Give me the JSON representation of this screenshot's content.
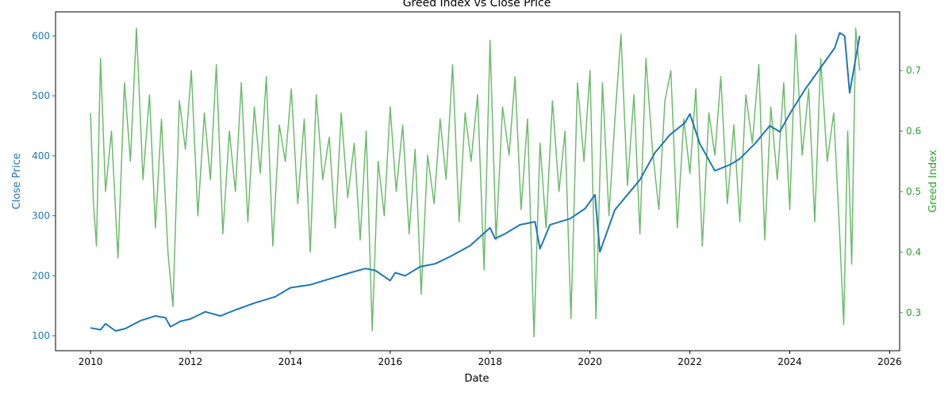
{
  "chart_data": {
    "type": "line",
    "title": "Greed Index vs Close Price",
    "xlabel": "Date",
    "ylabel_left": "Close Price",
    "ylabel_right": "Greed Index",
    "xlim": [
      2009.3,
      2026.2
    ],
    "ylim_left": [
      75,
      640
    ],
    "ylim_right": [
      0.237,
      0.797
    ],
    "x_ticks": [
      "2010",
      "2012",
      "2014",
      "2016",
      "2018",
      "2020",
      "2022",
      "2024",
      "2026"
    ],
    "x_tick_values": [
      2010,
      2012,
      2014,
      2016,
      2018,
      2020,
      2022,
      2024,
      2026
    ],
    "y_ticks_left": [
      100,
      200,
      300,
      400,
      500,
      600
    ],
    "y_ticks_right": [
      0.3,
      0.4,
      0.5,
      0.6,
      0.7
    ],
    "grid": false,
    "colors": {
      "close": "#1f77b4",
      "greed": "#2ca02c",
      "axis": "#000000"
    },
    "series": [
      {
        "name": "Close Price",
        "axis": "left",
        "x": [
          2010.0,
          2010.2,
          2010.3,
          2010.5,
          2010.7,
          2011.0,
          2011.3,
          2011.5,
          2011.6,
          2011.8,
          2012.0,
          2012.3,
          2012.6,
          2012.9,
          2013.3,
          2013.7,
          2014.0,
          2014.4,
          2014.8,
          2015.2,
          2015.5,
          2015.7,
          2016.0,
          2016.1,
          2016.3,
          2016.6,
          2016.9,
          2017.2,
          2017.6,
          2018.0,
          2018.1,
          2018.3,
          2018.6,
          2018.9,
          2019.0,
          2019.2,
          2019.6,
          2019.9,
          2020.1,
          2020.2,
          2020.5,
          2020.8,
          2021.0,
          2021.3,
          2021.6,
          2021.9,
          2022.0,
          2022.2,
          2022.5,
          2022.8,
          2023.0,
          2023.3,
          2023.6,
          2023.8,
          2024.0,
          2024.3,
          2024.6,
          2024.9,
          2025.0,
          2025.1,
          2025.2,
          2025.4
        ],
        "y": [
          113,
          110,
          120,
          108,
          112,
          125,
          133,
          130,
          115,
          124,
          128,
          140,
          133,
          143,
          155,
          165,
          180,
          185,
          195,
          205,
          212,
          209,
          192,
          205,
          200,
          215,
          220,
          232,
          250,
          280,
          262,
          270,
          285,
          290,
          245,
          285,
          295,
          312,
          335,
          240,
          310,
          340,
          360,
          405,
          435,
          455,
          470,
          420,
          375,
          385,
          395,
          420,
          450,
          440,
          470,
          510,
          545,
          580,
          605,
          600,
          505,
          600
        ]
      },
      {
        "name": "Greed Index",
        "axis": "right",
        "x": [
          2010.0,
          2010.06,
          2010.12,
          2010.2,
          2010.3,
          2010.42,
          2010.55,
          2010.68,
          2010.8,
          2010.92,
          2011.05,
          2011.18,
          2011.3,
          2011.42,
          2011.55,
          2011.65,
          2011.78,
          2011.9,
          2012.02,
          2012.15,
          2012.28,
          2012.4,
          2012.52,
          2012.65,
          2012.78,
          2012.9,
          2013.02,
          2013.15,
          2013.28,
          2013.4,
          2013.52,
          2013.65,
          2013.78,
          2013.9,
          2014.02,
          2014.15,
          2014.28,
          2014.4,
          2014.52,
          2014.65,
          2014.78,
          2014.9,
          2015.02,
          2015.15,
          2015.28,
          2015.4,
          2015.52,
          2015.64,
          2015.76,
          2015.88,
          2016.0,
          2016.12,
          2016.25,
          2016.38,
          2016.5,
          2016.62,
          2016.75,
          2016.88,
          2017.0,
          2017.12,
          2017.25,
          2017.38,
          2017.5,
          2017.62,
          2017.75,
          2017.88,
          2018.0,
          2018.12,
          2018.25,
          2018.38,
          2018.5,
          2018.62,
          2018.75,
          2018.88,
          2019.0,
          2019.12,
          2019.25,
          2019.38,
          2019.5,
          2019.62,
          2019.75,
          2019.88,
          2020.0,
          2020.12,
          2020.25,
          2020.38,
          2020.5,
          2020.62,
          2020.75,
          2020.88,
          2021.0,
          2021.12,
          2021.25,
          2021.38,
          2021.5,
          2021.62,
          2021.75,
          2021.88,
          2022.0,
          2022.12,
          2022.25,
          2022.38,
          2022.5,
          2022.62,
          2022.75,
          2022.88,
          2023.0,
          2023.12,
          2023.25,
          2023.38,
          2023.5,
          2023.62,
          2023.75,
          2023.88,
          2024.0,
          2024.12,
          2024.25,
          2024.38,
          2024.5,
          2024.62,
          2024.75,
          2024.88,
          2025.0,
          2025.08,
          2025.16,
          2025.24,
          2025.32,
          2025.4
        ],
        "y": [
          0.63,
          0.48,
          0.41,
          0.72,
          0.5,
          0.6,
          0.39,
          0.68,
          0.55,
          0.77,
          0.52,
          0.66,
          0.44,
          0.62,
          0.4,
          0.31,
          0.65,
          0.57,
          0.7,
          0.46,
          0.63,
          0.52,
          0.71,
          0.43,
          0.6,
          0.5,
          0.68,
          0.45,
          0.64,
          0.53,
          0.69,
          0.41,
          0.61,
          0.55,
          0.67,
          0.48,
          0.62,
          0.4,
          0.66,
          0.52,
          0.59,
          0.44,
          0.63,
          0.49,
          0.58,
          0.42,
          0.6,
          0.27,
          0.55,
          0.46,
          0.64,
          0.5,
          0.61,
          0.43,
          0.57,
          0.33,
          0.56,
          0.48,
          0.62,
          0.52,
          0.71,
          0.45,
          0.63,
          0.55,
          0.66,
          0.37,
          0.75,
          0.42,
          0.64,
          0.56,
          0.69,
          0.47,
          0.62,
          0.26,
          0.58,
          0.44,
          0.65,
          0.5,
          0.6,
          0.29,
          0.68,
          0.55,
          0.7,
          0.29,
          0.68,
          0.46,
          0.62,
          0.76,
          0.51,
          0.66,
          0.43,
          0.72,
          0.57,
          0.47,
          0.65,
          0.7,
          0.44,
          0.62,
          0.53,
          0.67,
          0.41,
          0.63,
          0.56,
          0.69,
          0.48,
          0.61,
          0.45,
          0.66,
          0.58,
          0.71,
          0.42,
          0.64,
          0.52,
          0.68,
          0.47,
          0.76,
          0.56,
          0.67,
          0.45,
          0.72,
          0.55,
          0.63,
          0.43,
          0.28,
          0.6,
          0.38,
          0.77,
          0.7
        ]
      }
    ]
  }
}
